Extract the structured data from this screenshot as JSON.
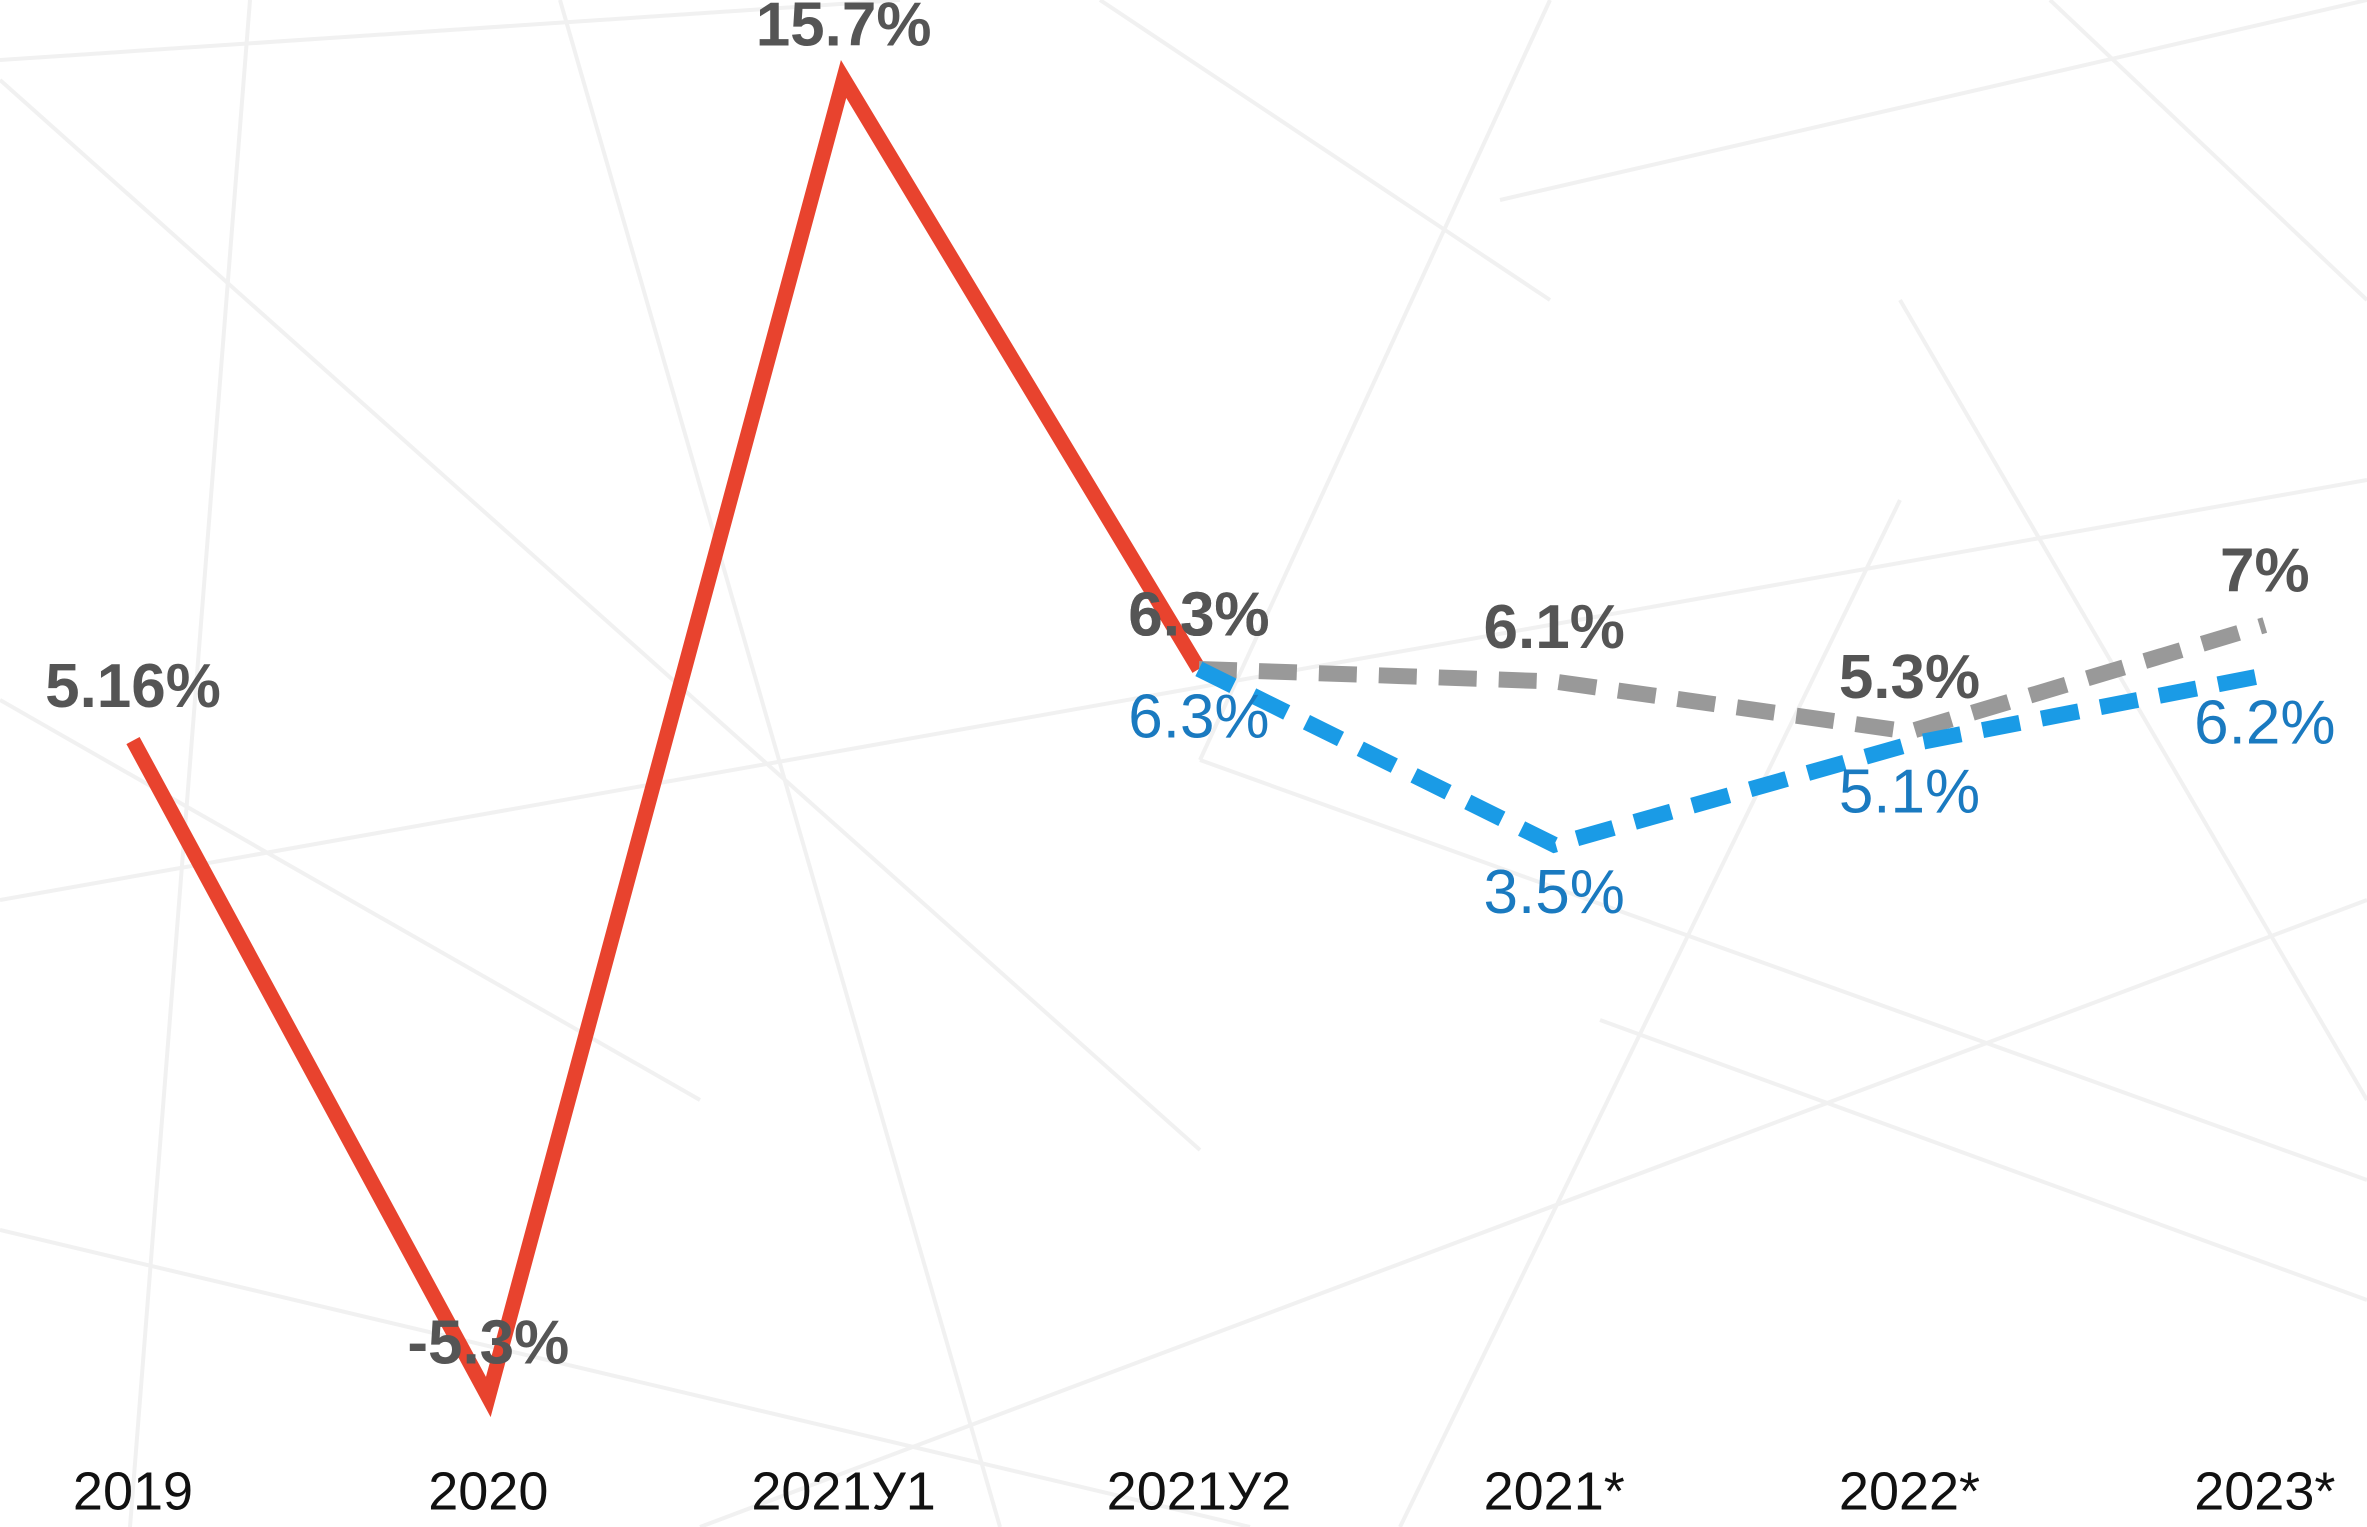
{
  "chart_data": {
    "type": "line",
    "categories": [
      "2019",
      "2020",
      "2021У1",
      "2021У2",
      "2021*",
      "2022*",
      "2023*"
    ],
    "series": [
      {
        "color": "#e8432e",
        "dashed": false,
        "label_color": "#555555",
        "values": [
          5.16,
          -5.3,
          15.7,
          6.3,
          null,
          null,
          null
        ],
        "value_labels": [
          "5.16%",
          "-5.3%",
          "15.7%",
          "6.3%",
          null,
          null,
          null
        ]
      },
      {
        "color": "#999999",
        "dashed": true,
        "label_color": "#555555",
        "values": [
          null,
          null,
          null,
          6.3,
          6.1,
          5.3,
          7
        ],
        "value_labels": [
          null,
          null,
          null,
          "6.3%",
          "6.1%",
          "5.3%",
          "7%"
        ]
      },
      {
        "color": "#1a9be6",
        "dashed": true,
        "label_color": "#1a7ac0",
        "values": [
          null,
          null,
          null,
          6.3,
          3.5,
          5.1,
          6.2
        ],
        "value_labels": [
          null,
          null,
          null,
          "6.3%",
          "3.5%",
          "5.1%",
          "6.2%"
        ]
      }
    ]
  }
}
